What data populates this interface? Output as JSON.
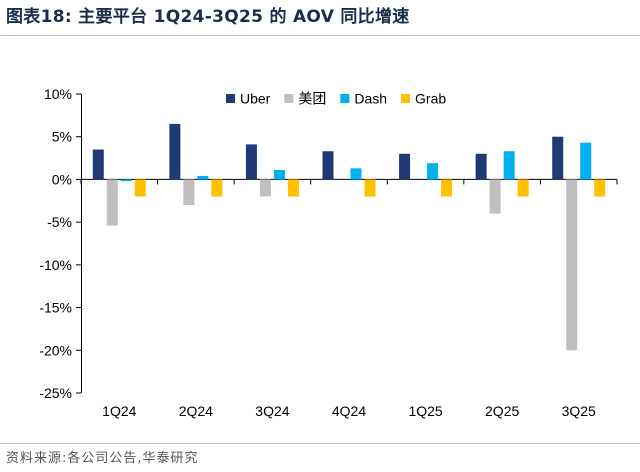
{
  "header": {
    "title": "图表18:  主要平台 1Q24-3Q25 的 AOV 同比增速"
  },
  "footer": {
    "source": "资料来源:各公司公告,华泰研究"
  },
  "chart_data": {
    "type": "bar",
    "title": "",
    "xlabel": "",
    "ylabel": "",
    "categories": [
      "1Q24",
      "2Q24",
      "3Q24",
      "4Q24",
      "1Q25",
      "2Q25",
      "3Q25"
    ],
    "y_ticks": [
      "10%",
      "5%",
      "0%",
      "-5%",
      "-10%",
      "-15%",
      "-20%",
      "-25%"
    ],
    "ylim": [
      -25,
      10
    ],
    "grid": false,
    "legend_position": "top-right",
    "series": [
      {
        "name": "Uber",
        "color": "#1f3a75",
        "values": [
          3.5,
          6.5,
          4.1,
          3.3,
          3.0,
          3.0,
          5.0
        ]
      },
      {
        "name": "美团",
        "color": "#bfbfbf",
        "values": [
          -5.4,
          -3.0,
          -2.0,
          null,
          null,
          -4.0,
          -20.0
        ]
      },
      {
        "name": "Dash",
        "color": "#00b0f0",
        "values": [
          -0.2,
          0.4,
          1.1,
          1.3,
          1.9,
          3.3,
          4.3
        ]
      },
      {
        "name": "Grab",
        "color": "#ffc000",
        "values": [
          -2.0,
          -2.0,
          -2.0,
          -2.0,
          -2.0,
          -2.0,
          -2.0
        ]
      }
    ]
  }
}
